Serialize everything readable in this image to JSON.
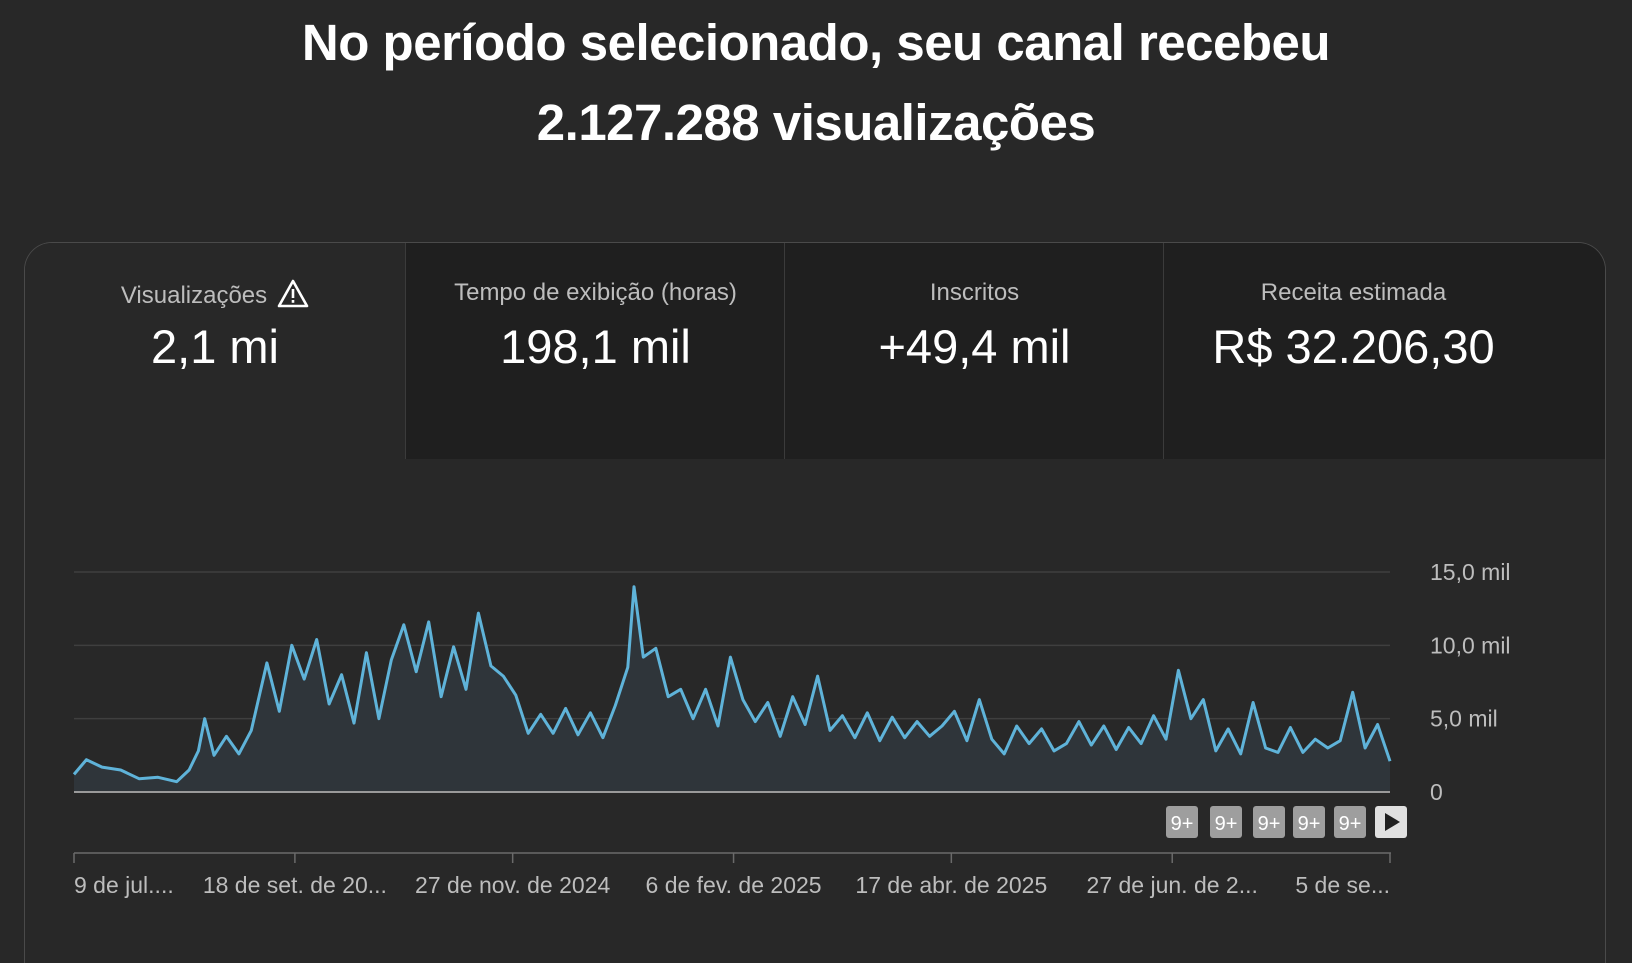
{
  "header": {
    "line1": "No período selecionado, seu canal recebeu",
    "line2": "2.127.288 visualizações"
  },
  "tabs": [
    {
      "label": "Visualizações",
      "value": "2,1 mi",
      "active": true,
      "icon": "warning-icon"
    },
    {
      "label": "Tempo de exibição (horas)",
      "value": "198,1 mil",
      "active": false
    },
    {
      "label": "Inscritos",
      "value": "+49,4 mil",
      "active": false
    },
    {
      "label": "Receita estimada",
      "value": "R$ 32.206,30",
      "active": false
    }
  ],
  "colors": {
    "background": "#282828",
    "line": "#5fb3d9",
    "area": "#2f353a",
    "grid": "#3f3f3f",
    "marker": "#9e9e9e"
  },
  "chart_data": {
    "type": "area",
    "title": "",
    "xlabel": "",
    "ylabel": "",
    "ylim": [
      0,
      15000
    ],
    "y_ticks": [
      {
        "value": 15000,
        "label": "15,0 mil"
      },
      {
        "value": 10000,
        "label": "10,0 mil"
      },
      {
        "value": 5000,
        "label": "5,0 mil"
      },
      {
        "value": 0,
        "label": "0"
      }
    ],
    "x_range": [
      "2024-07-09",
      "2025-09-05"
    ],
    "x_ticks": [
      {
        "date": "2024-07-09",
        "label": "9 de jul...."
      },
      {
        "date": "2024-09-18",
        "label": "18 de set. de 20..."
      },
      {
        "date": "2024-11-27",
        "label": "27 de nov. de 2024"
      },
      {
        "date": "2025-02-06",
        "label": "6 de fev. de 2025"
      },
      {
        "date": "2025-04-17",
        "label": "17 de abr. de 2025"
      },
      {
        "date": "2025-06-27",
        "label": "27 de jun. de 2..."
      },
      {
        "date": "2025-09-05",
        "label": "5 de se..."
      }
    ],
    "series": [
      {
        "points": [
          [
            "2024-07-09",
            1200
          ],
          [
            "2024-07-13",
            2200
          ],
          [
            "2024-07-18",
            1700
          ],
          [
            "2024-07-24",
            1500
          ],
          [
            "2024-07-30",
            900
          ],
          [
            "2024-08-05",
            1000
          ],
          [
            "2024-08-11",
            700
          ],
          [
            "2024-08-15",
            1500
          ],
          [
            "2024-08-18",
            2800
          ],
          [
            "2024-08-20",
            5000
          ],
          [
            "2024-08-23",
            2500
          ],
          [
            "2024-08-27",
            3800
          ],
          [
            "2024-08-31",
            2600
          ],
          [
            "2024-09-04",
            4200
          ],
          [
            "2024-09-09",
            8800
          ],
          [
            "2024-09-13",
            5500
          ],
          [
            "2024-09-17",
            10000
          ],
          [
            "2024-09-21",
            7700
          ],
          [
            "2024-09-25",
            10400
          ],
          [
            "2024-09-29",
            6000
          ],
          [
            "2024-10-03",
            8000
          ],
          [
            "2024-10-07",
            4700
          ],
          [
            "2024-10-11",
            9500
          ],
          [
            "2024-10-15",
            5000
          ],
          [
            "2024-10-19",
            9000
          ],
          [
            "2024-10-23",
            11400
          ],
          [
            "2024-10-27",
            8200
          ],
          [
            "2024-10-31",
            11600
          ],
          [
            "2024-11-04",
            6500
          ],
          [
            "2024-11-08",
            9900
          ],
          [
            "2024-11-12",
            7000
          ],
          [
            "2024-11-16",
            12200
          ],
          [
            "2024-11-20",
            8600
          ],
          [
            "2024-11-24",
            7900
          ],
          [
            "2024-11-28",
            6600
          ],
          [
            "2024-12-02",
            4000
          ],
          [
            "2024-12-06",
            5300
          ],
          [
            "2024-12-10",
            4000
          ],
          [
            "2024-12-14",
            5700
          ],
          [
            "2024-12-18",
            3900
          ],
          [
            "2024-12-22",
            5400
          ],
          [
            "2024-12-26",
            3700
          ],
          [
            "2024-12-30",
            5900
          ],
          [
            "2025-01-03",
            8500
          ],
          [
            "2025-01-05",
            14000
          ],
          [
            "2025-01-08",
            9200
          ],
          [
            "2025-01-12",
            9800
          ],
          [
            "2025-01-16",
            6500
          ],
          [
            "2025-01-20",
            7000
          ],
          [
            "2025-01-24",
            5000
          ],
          [
            "2025-01-28",
            7000
          ],
          [
            "2025-02-01",
            4500
          ],
          [
            "2025-02-05",
            9200
          ],
          [
            "2025-02-09",
            6300
          ],
          [
            "2025-02-13",
            4800
          ],
          [
            "2025-02-17",
            6100
          ],
          [
            "2025-02-21",
            3800
          ],
          [
            "2025-02-25",
            6500
          ],
          [
            "2025-03-01",
            4600
          ],
          [
            "2025-03-05",
            7900
          ],
          [
            "2025-03-09",
            4200
          ],
          [
            "2025-03-13",
            5200
          ],
          [
            "2025-03-17",
            3700
          ],
          [
            "2025-03-21",
            5400
          ],
          [
            "2025-03-25",
            3500
          ],
          [
            "2025-03-29",
            5100
          ],
          [
            "2025-04-02",
            3700
          ],
          [
            "2025-04-06",
            4800
          ],
          [
            "2025-04-10",
            3800
          ],
          [
            "2025-04-14",
            4500
          ],
          [
            "2025-04-18",
            5500
          ],
          [
            "2025-04-22",
            3500
          ],
          [
            "2025-04-26",
            6300
          ],
          [
            "2025-04-30",
            3600
          ],
          [
            "2025-05-04",
            2600
          ],
          [
            "2025-05-08",
            4500
          ],
          [
            "2025-05-12",
            3300
          ],
          [
            "2025-05-16",
            4300
          ],
          [
            "2025-05-20",
            2800
          ],
          [
            "2025-05-24",
            3300
          ],
          [
            "2025-05-28",
            4800
          ],
          [
            "2025-06-01",
            3200
          ],
          [
            "2025-06-05",
            4500
          ],
          [
            "2025-06-09",
            2900
          ],
          [
            "2025-06-13",
            4400
          ],
          [
            "2025-06-17",
            3300
          ],
          [
            "2025-06-21",
            5200
          ],
          [
            "2025-06-25",
            3600
          ],
          [
            "2025-06-29",
            8300
          ],
          [
            "2025-07-03",
            5000
          ],
          [
            "2025-07-07",
            6300
          ],
          [
            "2025-07-11",
            2800
          ],
          [
            "2025-07-15",
            4300
          ],
          [
            "2025-07-19",
            2600
          ],
          [
            "2025-07-23",
            6100
          ],
          [
            "2025-07-27",
            3000
          ],
          [
            "2025-07-31",
            2700
          ],
          [
            "2025-08-04",
            4400
          ],
          [
            "2025-08-08",
            2700
          ],
          [
            "2025-08-12",
            3600
          ],
          [
            "2025-08-16",
            3000
          ],
          [
            "2025-08-20",
            3500
          ],
          [
            "2025-08-24",
            6800
          ],
          [
            "2025-08-28",
            3000
          ],
          [
            "2025-09-01",
            4600
          ],
          [
            "2025-09-05",
            2100
          ]
        ]
      }
    ],
    "annotation_markers": [
      "9+",
      "9+",
      "9+",
      "9+",
      "9+"
    ],
    "grid": true,
    "legend": "none"
  }
}
